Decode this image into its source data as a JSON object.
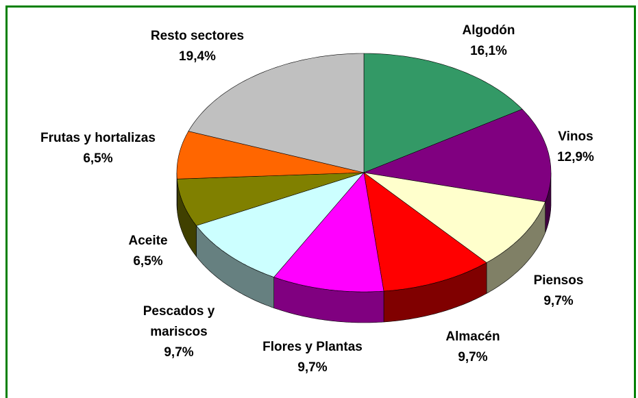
{
  "chart_data": {
    "type": "pie3d",
    "categories": [
      "Algodón",
      "Vinos",
      "Piensos",
      "Almacén",
      "Flores y Plantas",
      "Pescados y mariscos",
      "Aceite",
      "Frutas y hortalizas",
      "Resto sectores"
    ],
    "values": [
      16.1,
      12.9,
      9.7,
      9.7,
      9.7,
      9.7,
      6.5,
      6.5,
      19.4
    ],
    "value_labels": [
      "16,1%",
      "12,9%",
      "9,7%",
      "9,7%",
      "9,7%",
      "9,7%",
      "6,5%",
      "6,5%",
      "19,4%"
    ],
    "colors": [
      "#339966",
      "#800080",
      "#ffffcc",
      "#ff0000",
      "#ff00ff",
      "#ccffff",
      "#808000",
      "#ff6600",
      "#c0c0c0"
    ]
  }
}
